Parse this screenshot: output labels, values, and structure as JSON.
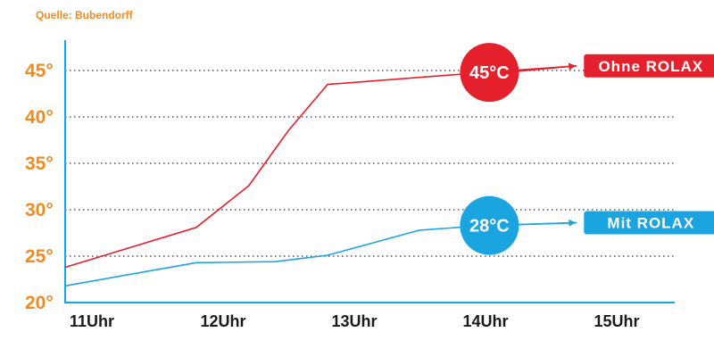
{
  "source_note": "Quelle: Bubendorff",
  "chart_data": {
    "type": "line",
    "title": "",
    "xlabel": "",
    "ylabel": "",
    "x_categories": [
      "11Uhr",
      "12Uhr",
      "13Uhr",
      "14Uhr",
      "15Uhr"
    ],
    "x_range": [
      11,
      15.7
    ],
    "y_ticks": [
      "20°",
      "25°",
      "30°",
      "35°",
      "40°",
      "45°"
    ],
    "y_tick_values": [
      20,
      25,
      30,
      35,
      40,
      45
    ],
    "ylim": [
      20,
      46
    ],
    "grid": "horizontal-dotted",
    "series": [
      {
        "name": "Ohne ROLAX",
        "color": "#e4202c",
        "x": [
          11,
          12,
          12.4,
          12.7,
          13,
          14.2,
          14.9
        ],
        "y": [
          23.8,
          28.1,
          32.6,
          38.5,
          43.5,
          44.8,
          45.5
        ]
      },
      {
        "name": "Mit ROLAX",
        "color": "#1aa4e0",
        "x": [
          11,
          12,
          12.6,
          13,
          13.7,
          14.2,
          14.9
        ],
        "y": [
          21.8,
          24.3,
          24.4,
          25.1,
          27.8,
          28.3,
          28.6
        ]
      }
    ],
    "annotations": [
      {
        "series": 0,
        "label": "45°C",
        "x": 14.2,
        "y": 44.8
      },
      {
        "series": 1,
        "label": "28°C",
        "x": 14.2,
        "y": 28.3
      }
    ],
    "legend_placement": "right, at end of each line"
  },
  "colors": {
    "axis": "#1aa4e0",
    "tick_label": "#f28a1e",
    "x_tick_label": "#1a1a1a",
    "grid": "#555555"
  }
}
